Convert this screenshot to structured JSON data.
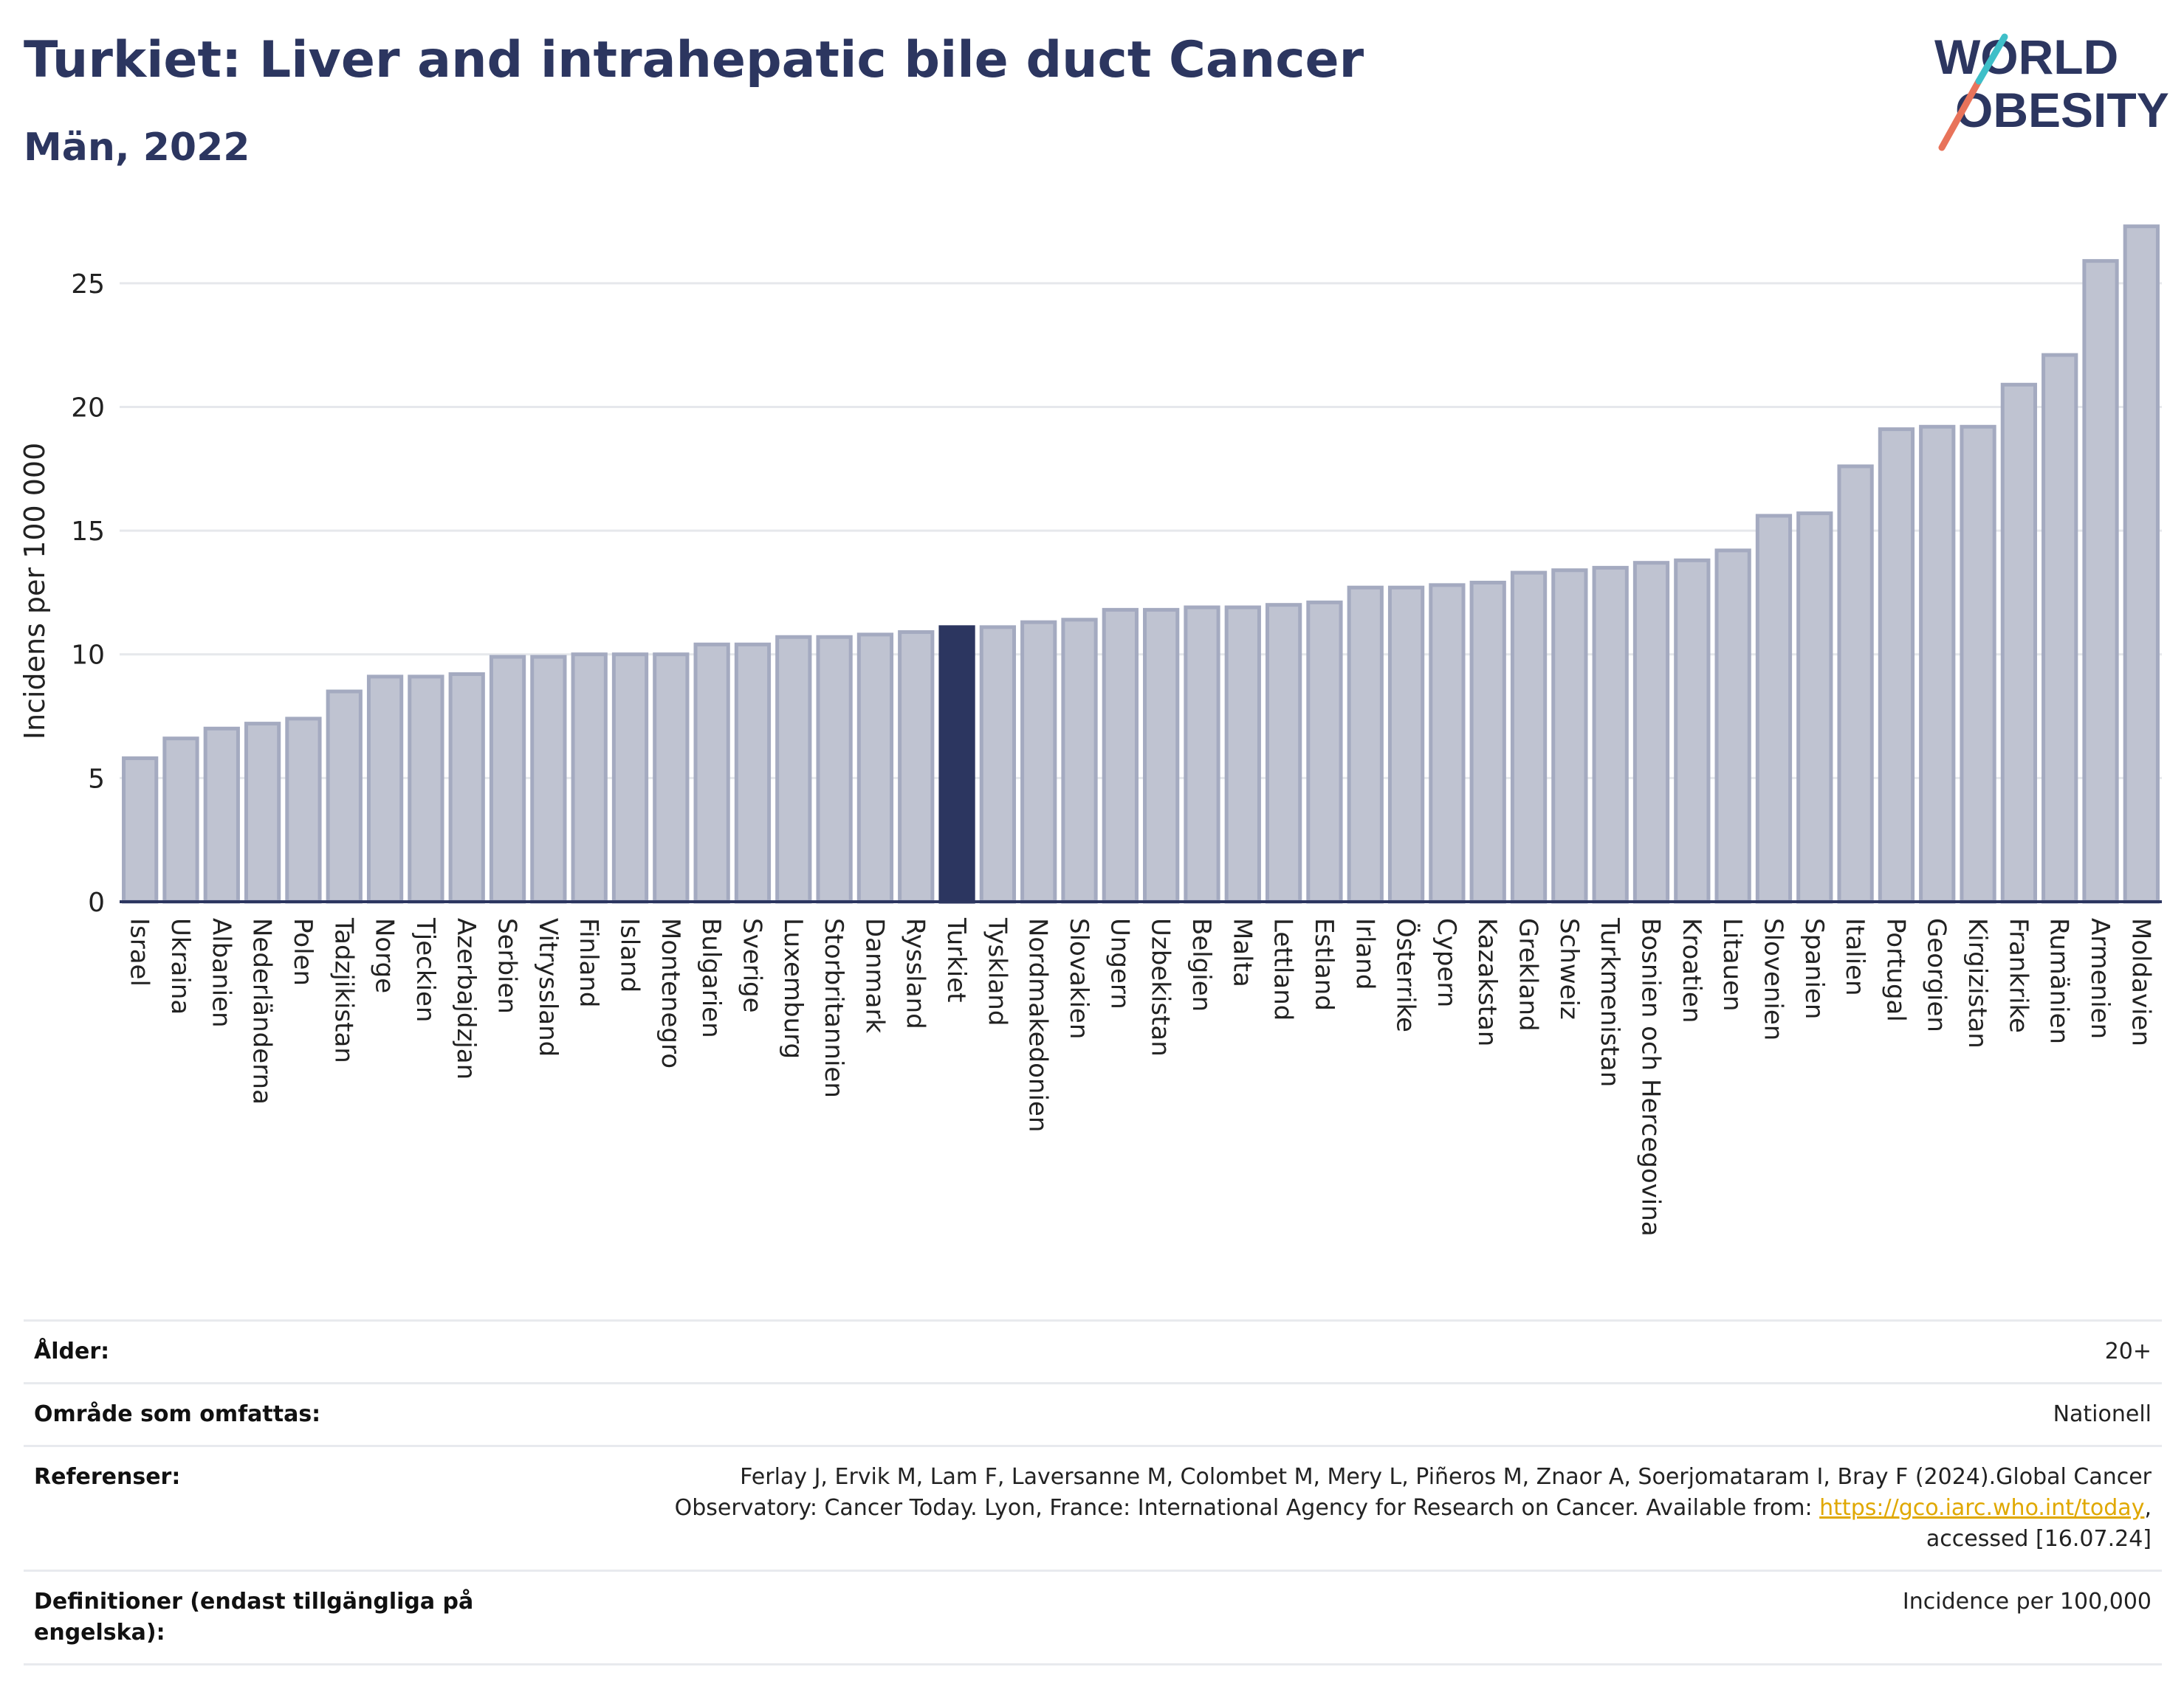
{
  "header": {
    "title": "Turkiet: Liver and intrahepatic bile duct Cancer",
    "subtitle": "Män, 2022",
    "logo_line1": "WORLD",
    "logo_line2": "OBESITY"
  },
  "chart_data": {
    "type": "bar",
    "ylabel": "Incidens per 100 000",
    "ylim": [
      0,
      27.5
    ],
    "yticks": [
      0,
      5,
      10,
      15,
      20,
      25
    ],
    "grid": true,
    "highlight": "Turkiet",
    "colors": {
      "bar": "#bfc3d1",
      "bar_edge": "#a4aac0",
      "highlight": "#2c3660",
      "axis": "#2c3660",
      "grid": "#e6e8ec"
    },
    "categories": [
      "Israel",
      "Ukraina",
      "Albanien",
      "Nederländerna",
      "Polen",
      "Tadzjikistan",
      "Norge",
      "Tjeckien",
      "Azerbajdzjan",
      "Serbien",
      "Vitryssland",
      "Finland",
      "Island",
      "Montenegro",
      "Bulgarien",
      "Sverige",
      "Luxemburg",
      "Storbritannien",
      "Danmark",
      "Ryssland",
      "Turkiet",
      "Tyskland",
      "Nordmakedonien",
      "Slovakien",
      "Ungern",
      "Uzbekistan",
      "Belgien",
      "Malta",
      "Lettland",
      "Estland",
      "Irland",
      "Österrike",
      "Cypern",
      "Kazakstan",
      "Grekland",
      "Schweiz",
      "Turkmenistan",
      "Bosnien och Hercegovina",
      "Kroatien",
      "Litauen",
      "Slovenien",
      "Spanien",
      "Italien",
      "Portugal",
      "Georgien",
      "Kirgizistan",
      "Frankrike",
      "Rumänien",
      "Armenien",
      "Moldavien"
    ],
    "values": [
      5.8,
      6.6,
      7.0,
      7.2,
      7.4,
      8.5,
      9.1,
      9.1,
      9.2,
      9.9,
      9.9,
      10.0,
      10.0,
      10.0,
      10.4,
      10.4,
      10.7,
      10.7,
      10.8,
      10.9,
      11.1,
      11.1,
      11.3,
      11.4,
      11.8,
      11.8,
      11.9,
      11.9,
      12.0,
      12.1,
      12.7,
      12.7,
      12.8,
      12.9,
      13.3,
      13.4,
      13.5,
      13.7,
      13.8,
      14.2,
      15.6,
      15.7,
      17.6,
      19.1,
      19.2,
      19.2,
      20.9,
      22.1,
      25.9,
      27.3
    ]
  },
  "meta": {
    "age_label": "Ålder:",
    "age_value": "20+",
    "area_label": "Område som omfattas:",
    "area_value": "Nationell",
    "ref_label": "Referenser:",
    "ref_text1": "Ferlay J, Ervik M, Lam F, Laversanne M, Colombet M, Mery L, Piñeros M, Znaor A, Soerjomataram I, Bray F (2024).Global Cancer",
    "ref_text2": "Observatory: Cancer Today. Lyon, France: International Agency for Research on Cancer. Available from:",
    "ref_link": "https://gco.iarc.who.int/today",
    "ref_text3": ",",
    "ref_text4": "accessed [16.07.24]",
    "def_label": "Definitioner (endast tillgängliga på engelska):",
    "def_value": "Incidence per 100,000"
  }
}
